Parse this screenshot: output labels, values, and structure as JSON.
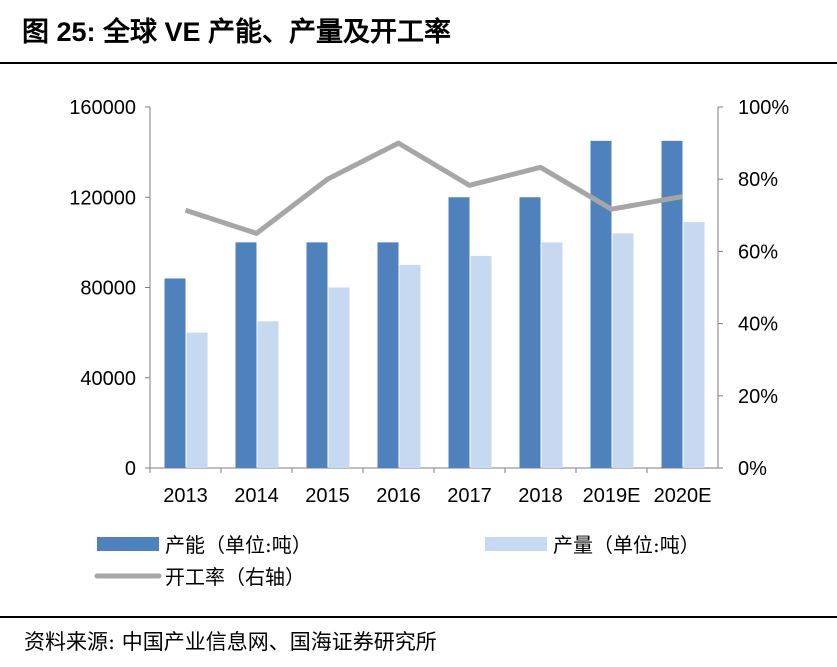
{
  "title": "图 25:  全球 VE 产能、产量及开工率",
  "source": "资料来源:  中国产业信息网、国海证券研究所",
  "chart_data": {
    "type": "bar+line",
    "categories": [
      "2013",
      "2014",
      "2015",
      "2016",
      "2017",
      "2018",
      "2019E",
      "2020E"
    ],
    "series": [
      {
        "name": "产能（单位:吨）",
        "type": "bar",
        "axis": "left",
        "color": "#4F81BD",
        "values": [
          84000,
          100000,
          100000,
          100000,
          120000,
          120000,
          145000,
          145000
        ]
      },
      {
        "name": "产量（单位:吨）",
        "type": "bar",
        "axis": "left",
        "color": "#C6D9F1",
        "values": [
          60000,
          65000,
          80000,
          90000,
          94000,
          100000,
          104000,
          109000
        ]
      },
      {
        "name": "开工率（右轴）",
        "type": "line",
        "axis": "right",
        "color": "#A6A6A6",
        "values": [
          71.4,
          65,
          80,
          90,
          78.3,
          83.3,
          71.7,
          75.2
        ]
      }
    ],
    "ylim_left": [
      0,
      160000
    ],
    "yticks_left": [
      "0",
      "40000",
      "80000",
      "120000",
      "160000"
    ],
    "ylim_right": [
      0,
      100
    ],
    "yticks_right": [
      "0%",
      "20%",
      "40%",
      "60%",
      "80%",
      "100%"
    ],
    "grid": false,
    "legend_placement": "bottom"
  }
}
